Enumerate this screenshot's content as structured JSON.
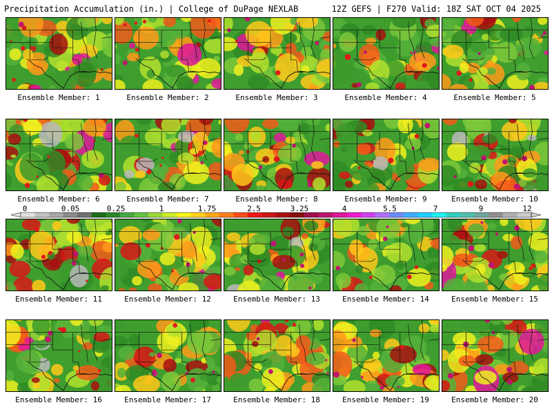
{
  "header": {
    "left": "Precipitation Accumulation (in.) | College of DuPage NEXLAB",
    "right": "12Z GEFS | F270 Valid: 18Z SAT OCT 04 2025"
  },
  "legend": {
    "tick_labels": [
      "0",
      "0.05",
      "0.25",
      "1",
      "1.75",
      "2.5",
      "3.25",
      "4",
      "5.5",
      "7",
      "9",
      "12"
    ],
    "colors": [
      "#e2e2e2",
      "#c4c4c4",
      "#a8a8a8",
      "#8a8a8a",
      "#707070",
      "#1b6e1b",
      "#2a8a2a",
      "#44a844",
      "#66c244",
      "#9ad93a",
      "#ccee2a",
      "#f7f71a",
      "#ffd21a",
      "#ffa81a",
      "#ff7f1a",
      "#ff4a1a",
      "#f01818",
      "#cc1414",
      "#a80f0f",
      "#880c0c",
      "#a0104c",
      "#c01470",
      "#e0189a",
      "#f01ccc",
      "#d040f0",
      "#b070ff",
      "#6a8cff",
      "#40b0ff",
      "#20d0ff",
      "#20f0f0",
      "#30d0c0",
      "#50c0b0",
      "#70a8a0",
      "#909090",
      "#b0b0b0",
      "#cccccc"
    ]
  },
  "panels": [
    {
      "member": 1,
      "label": "Ensemble Member: 1"
    },
    {
      "member": 2,
      "label": "Ensemble Member: 2"
    },
    {
      "member": 3,
      "label": "Ensemble Member: 3"
    },
    {
      "member": 4,
      "label": "Ensemble Member: 4"
    },
    {
      "member": 5,
      "label": "Ensemble Member: 5"
    },
    {
      "member": 6,
      "label": "Ensemble Member: 6"
    },
    {
      "member": 7,
      "label": "Ensemble Member: 7"
    },
    {
      "member": 8,
      "label": "Ensemble Member: 8"
    },
    {
      "member": 9,
      "label": "Ensemble Member: 9"
    },
    {
      "member": 10,
      "label": "Ensemble Member: 10"
    },
    {
      "member": 11,
      "label": "Ensemble Member: 11"
    },
    {
      "member": 12,
      "label": "Ensemble Member: 12"
    },
    {
      "member": 13,
      "label": "Ensemble Member: 13"
    },
    {
      "member": 14,
      "label": "Ensemble Member: 14"
    },
    {
      "member": 15,
      "label": "Ensemble Member: 15"
    },
    {
      "member": 16,
      "label": "Ensemble Member: 16"
    },
    {
      "member": 17,
      "label": "Ensemble Member: 17"
    },
    {
      "member": 18,
      "label": "Ensemble Member: 18"
    },
    {
      "member": 19,
      "label": "Ensemble Member: 19"
    },
    {
      "member": 20,
      "label": "Ensemble Member: 20"
    }
  ]
}
